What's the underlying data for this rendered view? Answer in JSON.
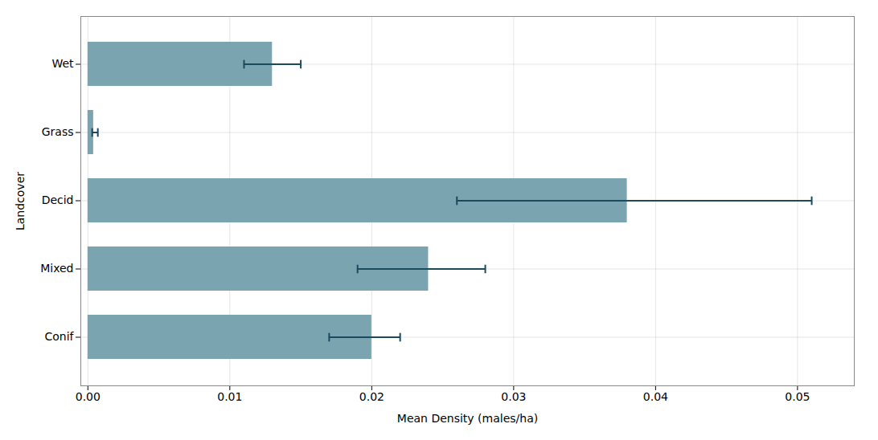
{
  "chart_data": {
    "type": "bar",
    "orientation": "horizontal",
    "categories": [
      "Conif",
      "Mixed",
      "Decid",
      "Grass",
      "Wet"
    ],
    "values": [
      0.02,
      0.024,
      0.038,
      0.0004,
      0.013
    ],
    "color": "#7aa5b0",
    "error_bars": {
      "centers": [
        0.018,
        0.02,
        0.027,
        0.0004,
        0.012
      ],
      "lower": [
        0.001,
        0.001,
        0.001,
        0.0001,
        0.001
      ],
      "upper": [
        0.004,
        0.008,
        0.024,
        0.0003,
        0.003
      ],
      "color": "#1a4a5c"
    },
    "xlabel": "Mean Density (males/ha)",
    "ylabel": "Landcover",
    "xlim": [
      -0.0005,
      0.054
    ],
    "xticks": [
      {
        "value": 0,
        "label": "0.00"
      },
      0.01,
      0.02,
      0.03,
      0.04,
      0.05
    ],
    "grid": true
  }
}
